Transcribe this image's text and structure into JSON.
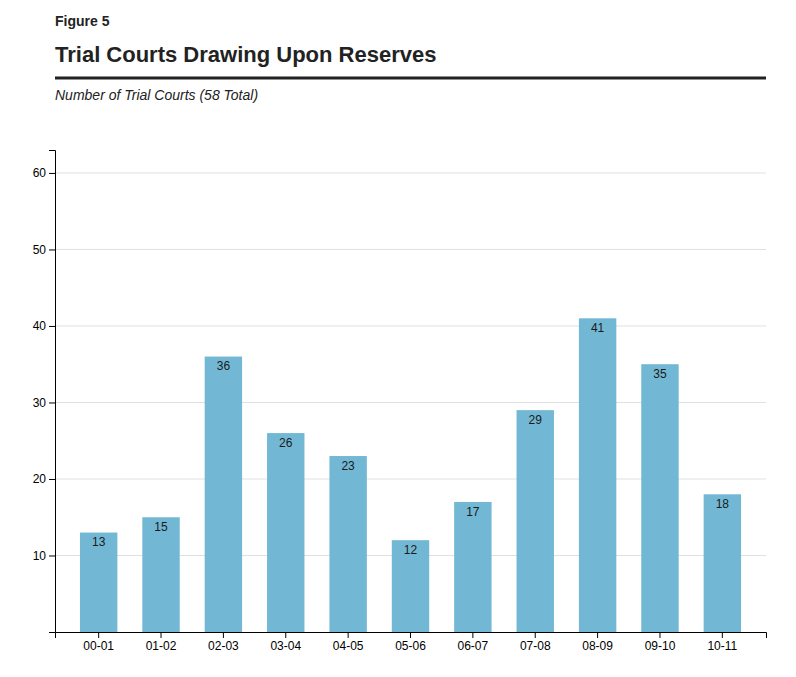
{
  "chart_data": {
    "type": "bar",
    "annotations": [
      "Figure 5"
    ],
    "title": "Trial Courts Drawing Upon Reserves",
    "subtitle": "Number of Trial Courts (58 Total)",
    "categories": [
      "00-01",
      "01-02",
      "02-03",
      "03-04",
      "04-05",
      "05-06",
      "06-07",
      "07-08",
      "08-09",
      "09-10",
      "10-11"
    ],
    "values": [
      13,
      15,
      36,
      26,
      23,
      12,
      17,
      29,
      41,
      35,
      18
    ],
    "color": "#72b8d4",
    "ylim": [
      0,
      63
    ],
    "yticks": [
      10,
      20,
      30,
      40,
      50,
      60
    ],
    "grid": true,
    "data_labels": true
  }
}
